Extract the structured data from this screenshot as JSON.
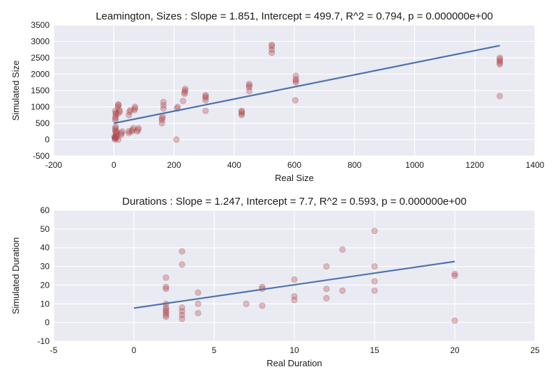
{
  "style": {
    "panel_bg": "#eaeaf2",
    "grid_color": "#ffffff",
    "point_color": "#c44e52",
    "line_color": "#4c72b0"
  },
  "chart_data": [
    {
      "type": "scatter",
      "title": "Leamington, Sizes : Slope = 1.851, Intercept = 499.7, R^2 = 0.794, p = 0.000000e+00",
      "xlabel": "Real Size",
      "ylabel": "Simulated Size",
      "xlim": [
        -200,
        1400
      ],
      "ylim": [
        -500,
        3500
      ],
      "xticks": [
        "-200",
        "0",
        "200",
        "400",
        "600",
        "800",
        "1000",
        "1200",
        "1400"
      ],
      "yticks": [
        "-500",
        "0",
        "500",
        "1000",
        "1500",
        "2000",
        "2500",
        "3000",
        "3500"
      ],
      "grid": true,
      "fit": {
        "slope": 1.851,
        "intercept": 499.7,
        "x_range": [
          0,
          1283
        ]
      },
      "points": [
        [
          3,
          50
        ],
        [
          3,
          80
        ],
        [
          3,
          100
        ],
        [
          4,
          0
        ],
        [
          5,
          40
        ],
        [
          5,
          250
        ],
        [
          5,
          300
        ],
        [
          5,
          350
        ],
        [
          6,
          400
        ],
        [
          5,
          600
        ],
        [
          5,
          650
        ],
        [
          6,
          700
        ],
        [
          6,
          780
        ],
        [
          7,
          820
        ],
        [
          5,
          880
        ],
        [
          8,
          60
        ],
        [
          8,
          150
        ],
        [
          8,
          200
        ],
        [
          10,
          250
        ],
        [
          12,
          100
        ],
        [
          15,
          0
        ],
        [
          14,
          800
        ],
        [
          14,
          1000
        ],
        [
          15,
          1050
        ],
        [
          15,
          1080
        ],
        [
          18,
          900
        ],
        [
          20,
          850
        ],
        [
          25,
          150
        ],
        [
          25,
          200
        ],
        [
          28,
          250
        ],
        [
          50,
          200
        ],
        [
          50,
          260
        ],
        [
          50,
          750
        ],
        [
          52,
          850
        ],
        [
          55,
          900
        ],
        [
          60,
          250
        ],
        [
          62,
          300
        ],
        [
          65,
          350
        ],
        [
          68,
          900
        ],
        [
          70,
          950
        ],
        [
          70,
          1000
        ],
        [
          78,
          250
        ],
        [
          80,
          300
        ],
        [
          82,
          350
        ],
        [
          160,
          500
        ],
        [
          160,
          600
        ],
        [
          160,
          650
        ],
        [
          162,
          700
        ],
        [
          165,
          950
        ],
        [
          165,
          1050
        ],
        [
          165,
          1150
        ],
        [
          208,
          0
        ],
        [
          210,
          950
        ],
        [
          212,
          1000
        ],
        [
          230,
          1180
        ],
        [
          235,
          1400
        ],
        [
          235,
          1450
        ],
        [
          237,
          1500
        ],
        [
          237,
          1550
        ],
        [
          305,
          880
        ],
        [
          305,
          1200
        ],
        [
          305,
          1280
        ],
        [
          305,
          1320
        ],
        [
          305,
          1360
        ],
        [
          425,
          750
        ],
        [
          425,
          800
        ],
        [
          425,
          850
        ],
        [
          425,
          880
        ],
        [
          450,
          1480
        ],
        [
          450,
          1600
        ],
        [
          450,
          1650
        ],
        [
          450,
          1700
        ],
        [
          525,
          2650
        ],
        [
          525,
          2750
        ],
        [
          525,
          2850
        ],
        [
          525,
          2900
        ],
        [
          603,
          1200
        ],
        [
          605,
          1750
        ],
        [
          605,
          1800
        ],
        [
          605,
          1850
        ],
        [
          605,
          1950
        ],
        [
          1283,
          1330
        ],
        [
          1283,
          2300
        ],
        [
          1283,
          2350
        ],
        [
          1283,
          2400
        ],
        [
          1283,
          2450
        ],
        [
          1283,
          2500
        ]
      ]
    },
    {
      "type": "scatter",
      "title": "Durations : Slope = 1.247, Intercept = 7.7, R^2 = 0.593, p = 0.000000e+00",
      "xlabel": "Real Duration",
      "ylabel": "Simulated Duration",
      "xlim": [
        -5,
        25
      ],
      "ylim": [
        -10,
        60
      ],
      "xticks": [
        "-5",
        "0",
        "5",
        "10",
        "15",
        "20",
        "25"
      ],
      "yticks": [
        "-10",
        "0",
        "10",
        "20",
        "30",
        "40",
        "50",
        "60"
      ],
      "grid": true,
      "fit": {
        "slope": 1.247,
        "intercept": 7.7,
        "x_range": [
          0,
          20
        ]
      },
      "points": [
        [
          2,
          24
        ],
        [
          2,
          19
        ],
        [
          2,
          18
        ],
        [
          2,
          10
        ],
        [
          2,
          8
        ],
        [
          2,
          7
        ],
        [
          2,
          6
        ],
        [
          2,
          5
        ],
        [
          2,
          4
        ],
        [
          2,
          3
        ],
        [
          3,
          38
        ],
        [
          3,
          31
        ],
        [
          3,
          8
        ],
        [
          3,
          6
        ],
        [
          3,
          4
        ],
        [
          3,
          2
        ],
        [
          4,
          16
        ],
        [
          4,
          10
        ],
        [
          4,
          5
        ],
        [
          7,
          10
        ],
        [
          8,
          19
        ],
        [
          8,
          18
        ],
        [
          8,
          9
        ],
        [
          10,
          23
        ],
        [
          10,
          14
        ],
        [
          10,
          12
        ],
        [
          12,
          30
        ],
        [
          12,
          18
        ],
        [
          12,
          13
        ],
        [
          13,
          39
        ],
        [
          13,
          17
        ],
        [
          15,
          49
        ],
        [
          15,
          30
        ],
        [
          15,
          22
        ],
        [
          15,
          17
        ],
        [
          20,
          26
        ],
        [
          20,
          25
        ],
        [
          20,
          1
        ]
      ]
    }
  ]
}
